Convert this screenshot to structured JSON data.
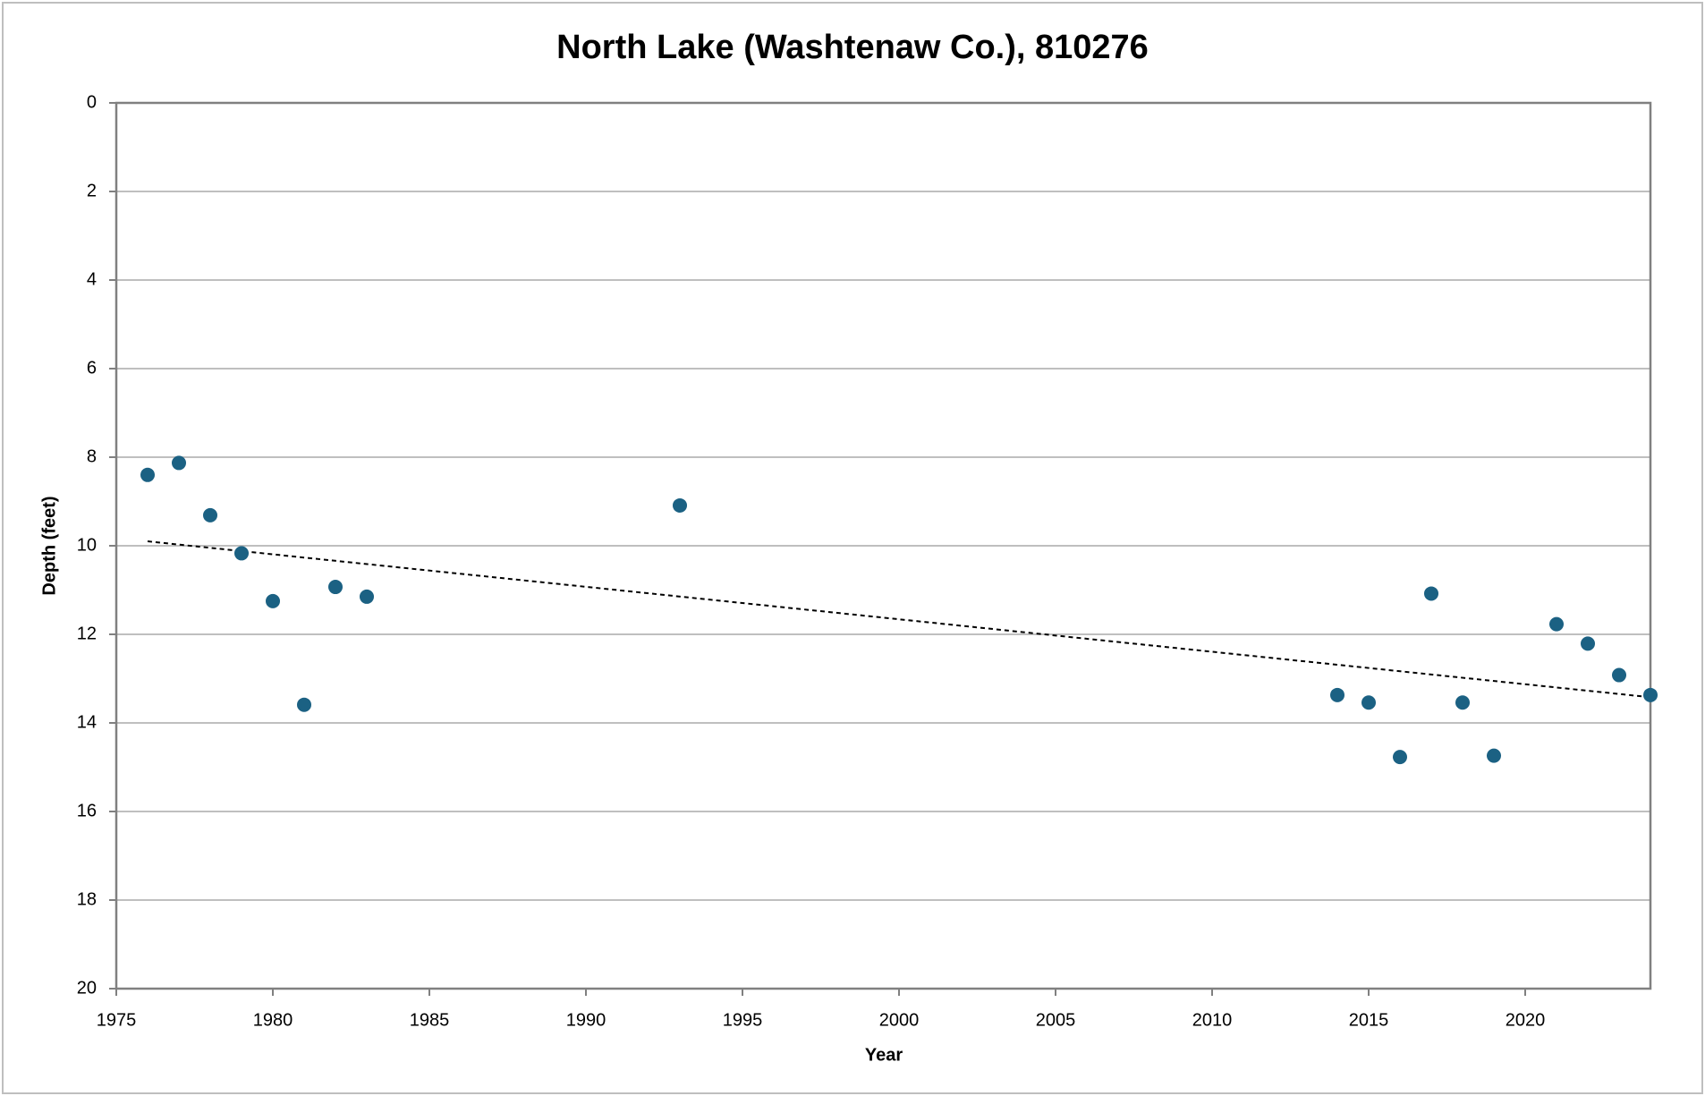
{
  "chart_data": {
    "type": "scatter",
    "title": "North Lake (Washtenaw Co.), 810276",
    "x_label": "Year",
    "y_label": "Depth (feet)",
    "series": [
      {
        "color": "#1b6183",
        "x": [
          1976,
          1977,
          1978,
          1979,
          1980,
          1981,
          1982,
          1983,
          1993,
          2014,
          2015,
          2016,
          2017,
          2018,
          2019,
          2021,
          2022,
          2023,
          2024
        ],
        "values": [
          8.4,
          8.13,
          9.31,
          10.17,
          11.25,
          13.59,
          10.93,
          11.15,
          9.09,
          13.37,
          13.54,
          14.77,
          11.08,
          13.54,
          14.74,
          11.77,
          12.21,
          12.92,
          13.37
        ]
      }
    ],
    "trendline": {
      "x": [
        1976,
        2024
      ],
      "values": [
        9.9,
        13.42
      ],
      "color": "#000000"
    },
    "xlim": [
      1975,
      2024
    ],
    "xticks": [
      1975,
      1980,
      1985,
      1990,
      1995,
      2000,
      2005,
      2010,
      2015,
      2020
    ],
    "ylim": [
      0,
      20
    ],
    "yticks": [
      0,
      2,
      4,
      6,
      8,
      10,
      12,
      14,
      16,
      18,
      20
    ],
    "y_inverted": true,
    "grid": true
  }
}
